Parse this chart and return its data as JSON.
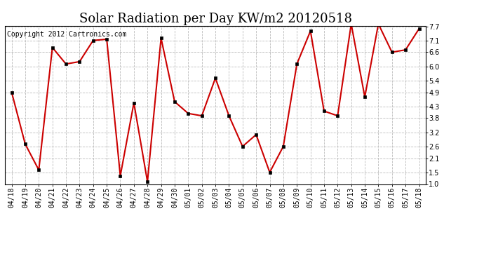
{
  "title": "Solar Radiation per Day KW/m2 20120518",
  "copyright_text": "Copyright 2012 Cartronics.com",
  "dates": [
    "04/18",
    "04/19",
    "04/20",
    "04/21",
    "04/22",
    "04/23",
    "04/24",
    "04/25",
    "04/26",
    "04/27",
    "04/28",
    "04/29",
    "04/30",
    "05/01",
    "05/02",
    "05/03",
    "05/04",
    "05/05",
    "05/06",
    "05/07",
    "05/08",
    "05/09",
    "05/10",
    "05/11",
    "05/12",
    "05/13",
    "05/14",
    "05/15",
    "05/16",
    "05/17",
    "05/18"
  ],
  "values": [
    4.9,
    2.7,
    1.6,
    6.8,
    6.1,
    6.2,
    7.1,
    7.15,
    1.35,
    4.45,
    1.1,
    7.2,
    4.5,
    4.0,
    3.9,
    5.5,
    3.9,
    2.6,
    3.1,
    1.5,
    2.6,
    6.1,
    7.5,
    4.1,
    3.9,
    7.8,
    4.7,
    7.8,
    6.6,
    6.7,
    7.6
  ],
  "line_color": "#cc0000",
  "marker_color": "#000000",
  "bg_color": "#ffffff",
  "plot_bg_color": "#ffffff",
  "grid_color": "#bbbbbb",
  "ylim": [
    1.0,
    7.7
  ],
  "yticks": [
    1.0,
    1.5,
    2.1,
    2.6,
    3.2,
    3.8,
    4.3,
    4.9,
    5.4,
    6.0,
    6.6,
    7.1,
    7.7
  ],
  "title_fontsize": 13,
  "tick_fontsize": 7,
  "copyright_fontsize": 7
}
